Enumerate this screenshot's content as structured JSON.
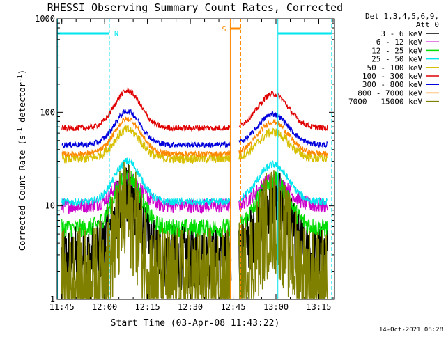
{
  "chart_data": {
    "type": "line",
    "title": "RHESSI Observing Summary Count Rates, Corrected",
    "xlabel": "Start Time (03-Apr-08 11:43:22)",
    "ylabel_main": "Corrected Count Rate (s",
    "ylabel_exp1": "-1",
    "ylabel_mid": " detector",
    "ylabel_exp2": "-1",
    "ylabel_end": ")",
    "yscale": "log",
    "ylim": [
      1,
      1000
    ],
    "xlim": [
      "11:43:22",
      "13:20:30"
    ],
    "x_ticks": [
      "11:45",
      "12:00",
      "12:15",
      "12:30",
      "12:45",
      "13:00",
      "13:15"
    ],
    "y_ticks": [
      "1",
      "10",
      "100",
      "1000"
    ],
    "legend_header": [
      "Det 1,3,4,5,6,9,",
      "Att 0"
    ],
    "footer_date": "14-Oct-2021 08:28",
    "annotations": {
      "night_label": "N",
      "saa_label": "S"
    },
    "series": [
      {
        "name": "3 - 6 keV",
        "color": "#000000",
        "base": 2.8,
        "peak": 13,
        "noise": 0.35
      },
      {
        "name": "6 - 12 keV",
        "color": "#cc00cc",
        "base": 10,
        "peak": 20,
        "noise": 0.08
      },
      {
        "name": "12 - 25 keV",
        "color": "#00dd00",
        "base": 5.8,
        "peak": 21,
        "noise": 0.1
      },
      {
        "name": "25 - 50 keV",
        "color": "#00e5ee",
        "base": 11,
        "peak": 30,
        "noise": 0.04
      },
      {
        "name": "50 - 100 keV",
        "color": "#d8c000",
        "base": 32,
        "peak": 65,
        "noise": 0.05
      },
      {
        "name": "100 - 300 keV",
        "color": "#e00000",
        "base": 68,
        "peak": 170,
        "noise": 0.03
      },
      {
        "name": "300 - 800 keV",
        "color": "#0000dd",
        "base": 45,
        "peak": 102,
        "noise": 0.03
      },
      {
        "name": "800 - 7000 keV",
        "color": "#ff8800",
        "base": 36,
        "peak": 85,
        "noise": 0.03
      },
      {
        "name": "7000 - 15000 keV",
        "color": "#808000",
        "base": 1.5,
        "peak": 8,
        "noise": 0.6
      }
    ]
  }
}
